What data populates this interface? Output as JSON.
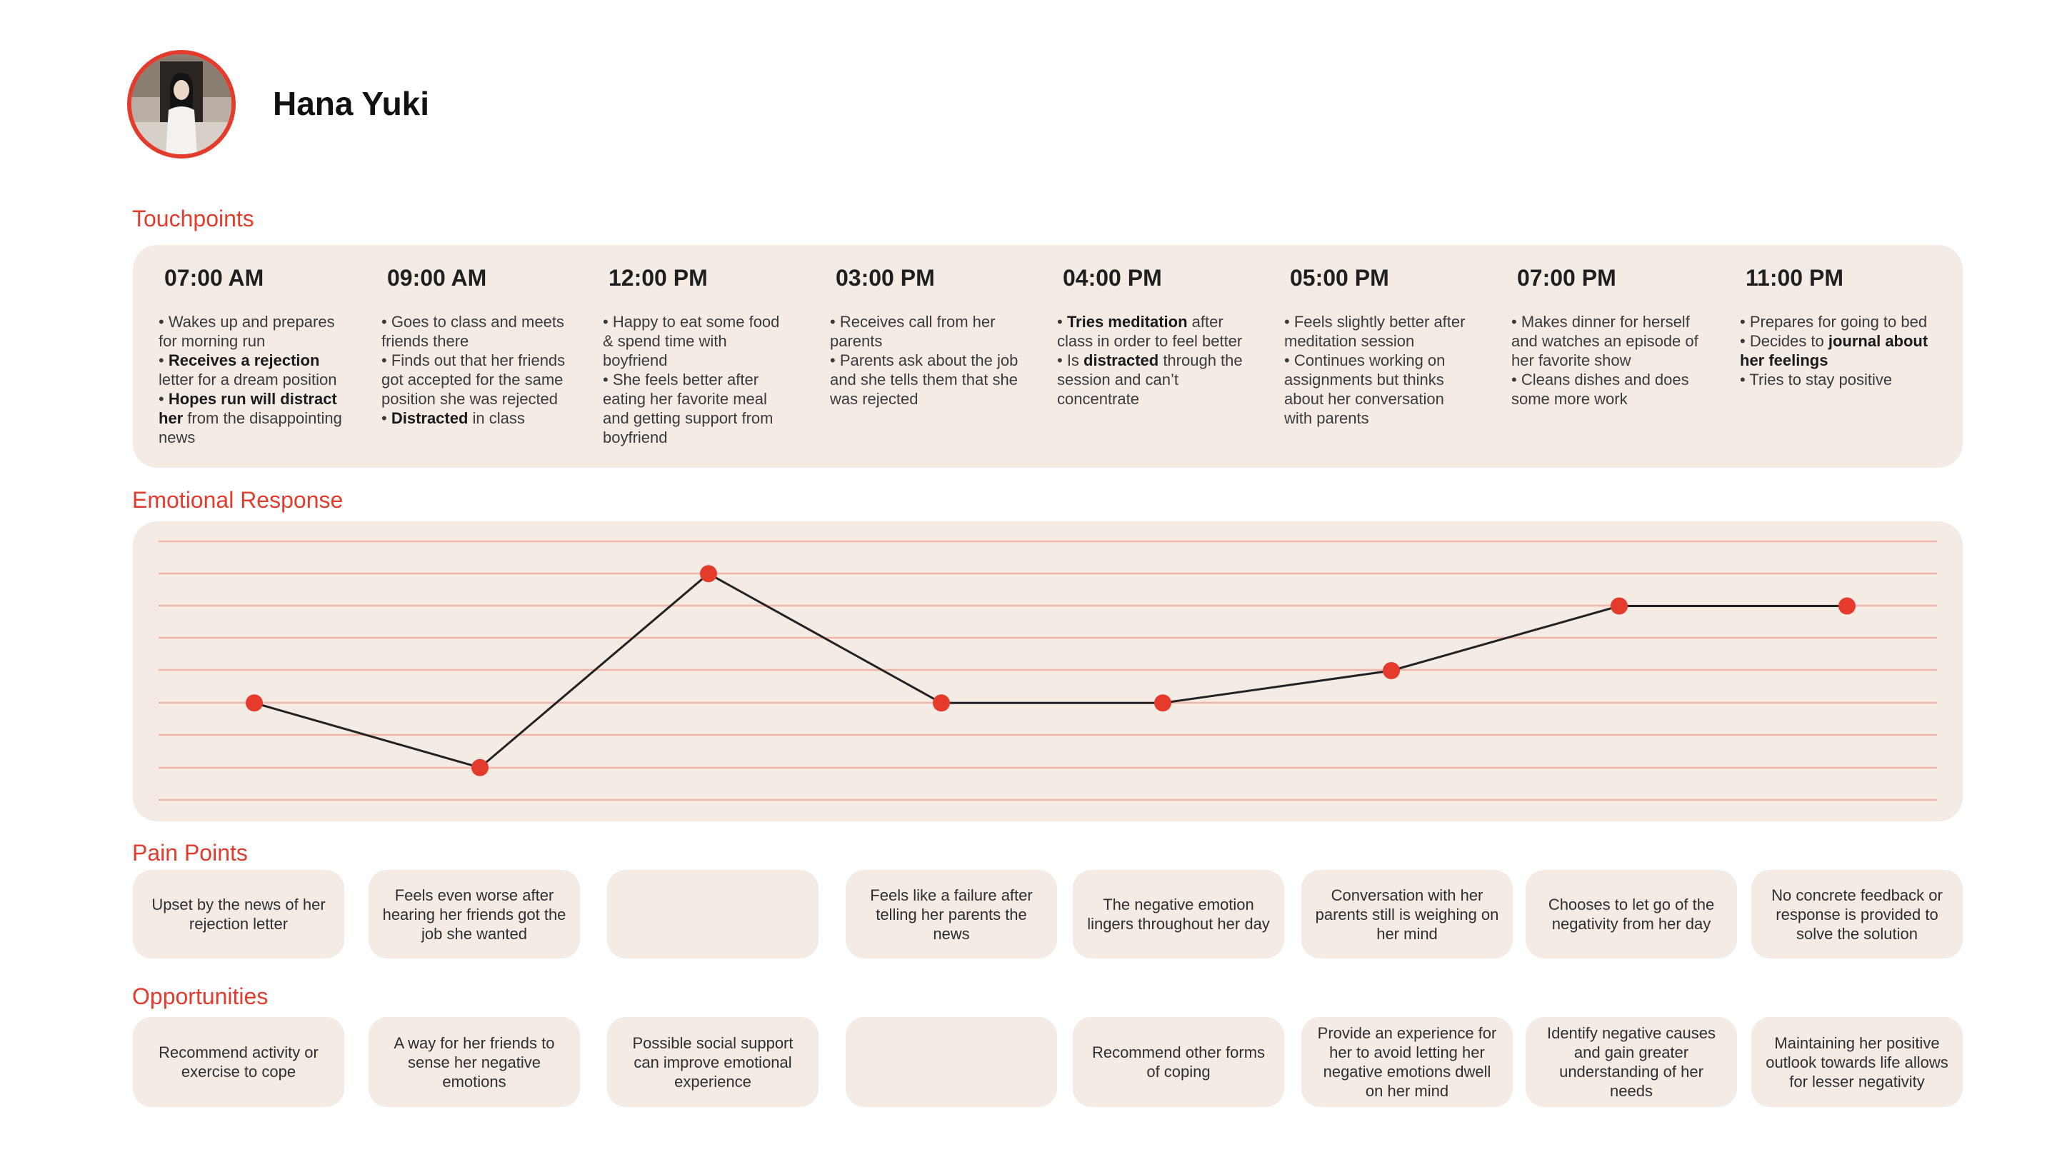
{
  "persona": {
    "name": "Hana Yuki"
  },
  "sections": {
    "touchpoints": "Touchpoints",
    "emotional_response": "Emotional Response",
    "pain_points": "Pain Points",
    "opportunities": "Opportunities"
  },
  "touchpoints": [
    {
      "time": "07:00 AM",
      "html": "• Wakes up and prepares for morning run<br>• <b>Receives a rejection</b> letter for a dream position<br>• <b>Hopes run will distract her</b> from the disappointing news"
    },
    {
      "time": "09:00 AM",
      "html": "• Goes to class and meets friends there<br>• Finds out that her friends got accepted for the same position she was rejected<br>• <b>Distracted</b> in class"
    },
    {
      "time": "12:00 PM",
      "html": "• Happy to eat some food &amp; spend time with boyfriend<br>• She feels better after eating her favorite meal and getting support from boyfriend"
    },
    {
      "time": "03:00 PM",
      "html": "• Receives call from her parents<br>• Parents ask about the job and she tells them that she was rejected"
    },
    {
      "time": "04:00 PM",
      "html": "• <b>Tries meditation</b> after class in order to feel better<br>• Is <b>distracted</b> through the session and can’t concentrate"
    },
    {
      "time": "05:00 PM",
      "html": "• Feels slightly better after meditation session<br>• Continues working on assignments but thinks about her conversation with parents"
    },
    {
      "time": "07:00 PM",
      "html": "• Makes dinner for herself and watches an episode of her favorite show<br>• Cleans dishes and does some more work"
    },
    {
      "time": "11:00 PM",
      "html": "• Prepares for going to bed<br>• Decides to <b>journal about her feelings</b><br>• Tries to stay positive"
    }
  ],
  "chart_data": {
    "type": "line",
    "x": [
      "07:00 AM",
      "09:00 AM",
      "12:00 PM",
      "03:00 PM",
      "04:00 PM",
      "05:00 PM",
      "07:00 PM",
      "11:00 PM"
    ],
    "values": [
      3,
      1,
      7,
      3,
      3,
      4,
      6,
      6
    ],
    "ylim": [
      0,
      8
    ],
    "grid": true,
    "colors": {
      "line": "#222222",
      "marker": "#e53b2c",
      "grid": "#f3b4a8"
    }
  },
  "pain_points": [
    "Upset by the news of her rejection letter",
    "Feels even worse after hearing her friends got the job she wanted",
    "",
    "Feels like a failure after telling her parents the news",
    "The negative emotion lingers throughout her day",
    "Conversation with her parents still is weighing on her mind",
    "Chooses to let go of the negativity from her day",
    "No concrete feedback or response is provided to solve the solution"
  ],
  "opportunities": [
    "Recommend activity or exercise to cope",
    "A way for her friends to sense her negative emotions",
    "Possible social support can improve emotional experience",
    "",
    "Recommend other forms of coping",
    "Provide an experience for her to avoid letting her negative emotions dwell on her mind",
    "Identify negative causes and gain greater understanding of her needs",
    "Maintaining her positive outlook towards life allows for lesser negativity"
  ],
  "colors": {
    "accent": "#e53b2c",
    "panel": "#f5ebe5"
  }
}
